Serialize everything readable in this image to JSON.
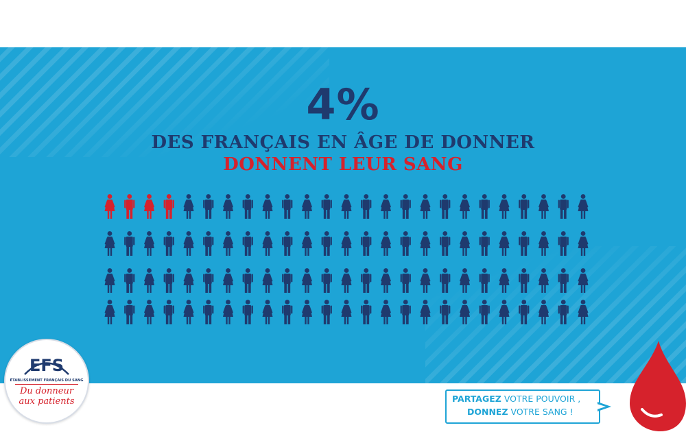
{
  "headline": {
    "percent": "4%",
    "line1": "DES FRANÇAIS EN ÂGE DE DONNER",
    "line2": "DONNENT LEUR SANG"
  },
  "figure_grid": {
    "rows": 4,
    "columns": 25,
    "highlighted": 4,
    "highlight_color": "#d6222c",
    "base_color": "#1f3a6e",
    "pattern_first_row": [
      "woman",
      "man",
      "woman",
      "man",
      "woman",
      "man",
      "woman",
      "man",
      "woman",
      "man",
      "woman",
      "man",
      "woman",
      "man",
      "woman",
      "man",
      "woman",
      "man",
      "woman",
      "man",
      "woman",
      "man",
      "woman",
      "man",
      "woman"
    ],
    "pattern_other_rows": [
      "woman",
      "man",
      "woman",
      "man",
      "woman",
      "man",
      "woman",
      "man",
      "woman",
      "man",
      "woman",
      "man",
      "woman",
      "man",
      "woman",
      "man",
      "woman",
      "man",
      "woman",
      "man",
      "woman",
      "man",
      "woman",
      "man",
      "woman"
    ],
    "icons": [
      "woman-icon",
      "man-icon"
    ]
  },
  "logo": {
    "name": "EFS",
    "subtitle": "ÉTABLISSEMENT FRANÇAIS DU SANG",
    "tagline_line1": "Du donneur",
    "tagline_line2": "aux patients"
  },
  "cta": {
    "line1_strong": "PARTAGEZ",
    "line1_rest": " VOTRE POUVOIR ,",
    "line2_strong": "DONNEZ",
    "line2_rest": " VOTRE SANG !"
  },
  "colors": {
    "background_blue": "#1ea4d6",
    "navy": "#1f3a6e",
    "red": "#d6222c",
    "drop_red": "#d6222c"
  }
}
